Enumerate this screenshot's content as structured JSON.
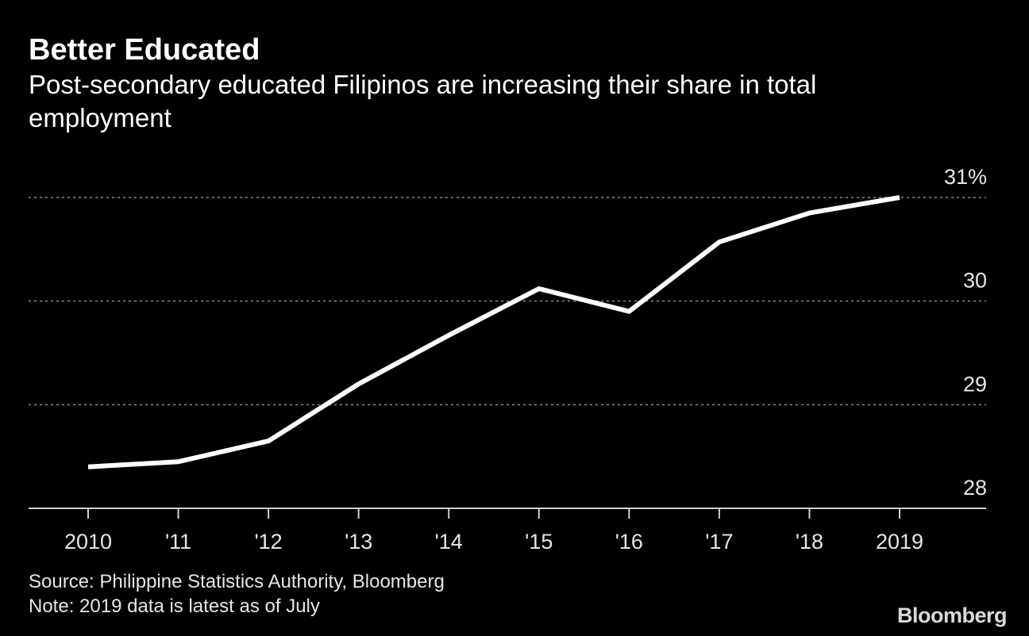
{
  "header": {
    "title": "Better Educated",
    "subtitle": "Post-secondary educated Filipinos are increasing their share in total employment"
  },
  "chart_data": {
    "type": "line",
    "title": "Better Educated",
    "subtitle": "Post-secondary educated Filipinos are increasing their share in total employment",
    "categories": [
      "2010",
      "'11",
      "'12",
      "'13",
      "'14",
      "'15",
      "'16",
      "'17",
      "'18",
      "2019"
    ],
    "series": [
      {
        "values": [
          28.4,
          28.45,
          28.65,
          29.2,
          29.67,
          30.12,
          29.9,
          30.57,
          30.85,
          31.0
        ]
      }
    ],
    "y_ticks": [
      {
        "value": 28,
        "label": "28"
      },
      {
        "value": 29,
        "label": "29"
      },
      {
        "value": 30,
        "label": "30"
      },
      {
        "value": 31,
        "label": "31%"
      }
    ],
    "ylim": [
      28,
      31
    ],
    "xlabel": "",
    "ylabel": "",
    "grid": true,
    "colors": {
      "background": "#000000",
      "line": "#ffffff",
      "grid": "#8a8a8a",
      "text": "#e6e6e6"
    }
  },
  "footer": {
    "source": "Source: Philippine Statistics Authority, Bloomberg",
    "note": "Note: 2019 data is latest as of July"
  },
  "brand": {
    "logo_text": "Bloomberg"
  }
}
